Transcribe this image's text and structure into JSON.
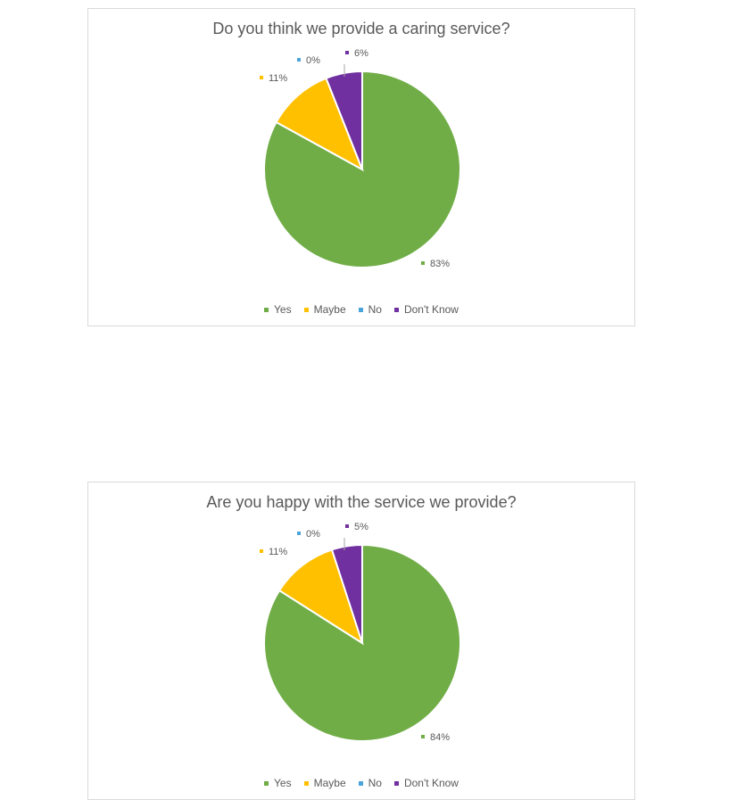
{
  "chart_data": [
    {
      "type": "pie",
      "title": "Do you think we provide a caring service?",
      "categories": [
        "Yes",
        "Maybe",
        "No",
        "Don't Know"
      ],
      "values": [
        83,
        11,
        0,
        6
      ],
      "data_labels": [
        "83%",
        "11%",
        "0%",
        "6%"
      ],
      "colors": [
        "#70ad47",
        "#ffc000",
        "#4aa4d9",
        "#7030a0"
      ],
      "legend": [
        "Yes",
        "Maybe",
        "No",
        "Don't Know"
      ],
      "legend_position": "bottom",
      "start_angle": "top",
      "direction": "counterclockwise-from-yes"
    },
    {
      "type": "pie",
      "title": "Are you happy with the service we provide?",
      "categories": [
        "Yes",
        "Maybe",
        "No",
        "Don't Know"
      ],
      "values": [
        84,
        11,
        0,
        5
      ],
      "data_labels": [
        "84%",
        "11%",
        "0%",
        "5%"
      ],
      "colors": [
        "#70ad47",
        "#ffc000",
        "#4aa4d9",
        "#7030a0"
      ],
      "legend": [
        "Yes",
        "Maybe",
        "No",
        "Don't Know"
      ],
      "legend_position": "bottom",
      "start_angle": "top",
      "direction": "counterclockwise-from-yes"
    }
  ]
}
